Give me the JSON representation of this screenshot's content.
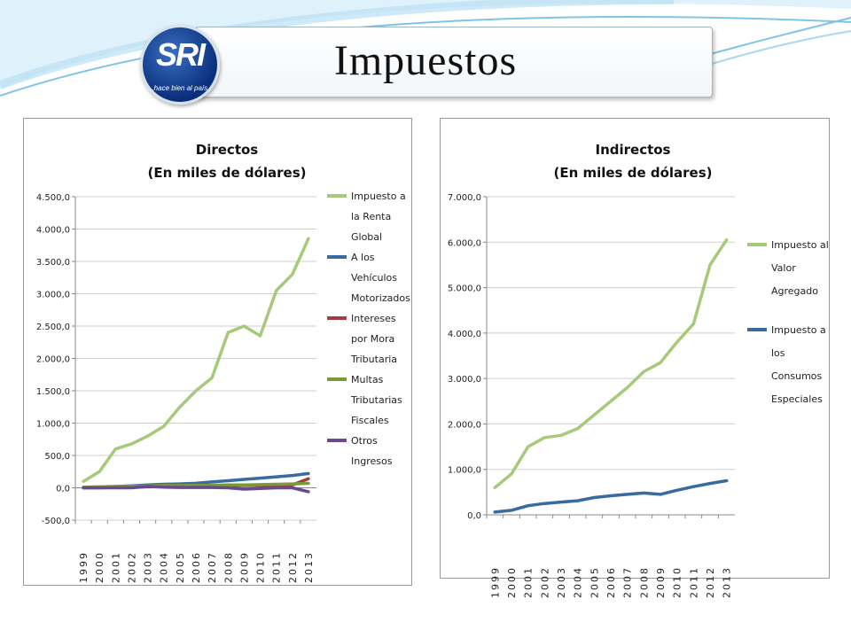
{
  "slide": {
    "title": "Impuestos",
    "logo_text": "SRI",
    "logo_slogan": "...hace bien al país"
  },
  "colors": {
    "accent_swoosh": "#bfe3f5",
    "series_green": "#a6c97a",
    "series_blue": "#386ba0",
    "series_red": "#a33c3a",
    "series_olive": "#789a3a",
    "series_purple": "#6a4a8c"
  },
  "chart_data": [
    {
      "type": "line",
      "title": "Directos",
      "subtitle": "(En miles de dólares)",
      "x": [
        "1999",
        "2000",
        "2001",
        "2002",
        "2003",
        "2004",
        "2005",
        "2006",
        "2007",
        "2008",
        "2009",
        "2010",
        "2011",
        "2012",
        "2013"
      ],
      "ylim": [
        -500,
        4500
      ],
      "yticks": [
        "-500,0",
        "0,0",
        "500,0",
        "1.000,0",
        "1.500,0",
        "2.000,0",
        "2.500,0",
        "3.000,0",
        "3.500,0",
        "4.000,0",
        "4.500,0"
      ],
      "grid": true,
      "legend_position": "right",
      "series": [
        {
          "name": "Impuesto a la Renta Global",
          "legend_lines": [
            "Impuesto a",
            "la Renta",
            "Global"
          ],
          "color": "#a6c97a",
          "values": [
            100,
            250,
            600,
            680,
            800,
            950,
            1250,
            1500,
            1700,
            2400,
            2500,
            2350,
            3050,
            3300,
            3850
          ]
        },
        {
          "name": "A los Vehículos Motorizados",
          "legend_lines": [
            "A los",
            "Vehículos",
            "Motorizados"
          ],
          "color": "#386ba0",
          "values": [
            0,
            5,
            20,
            30,
            45,
            55,
            60,
            70,
            90,
            110,
            130,
            150,
            170,
            190,
            220
          ]
        },
        {
          "name": "Intereses por Mora Tributaria",
          "legend_lines": [
            "Intereses",
            "por Mora",
            "Tributaria"
          ],
          "color": "#a33c3a",
          "values": [
            0,
            0,
            5,
            10,
            15,
            20,
            20,
            25,
            30,
            30,
            35,
            35,
            40,
            45,
            140
          ]
        },
        {
          "name": "Multas Tributarias Fiscales",
          "legend_lines": [
            "Multas",
            "Tributarias",
            "Fiscales"
          ],
          "color": "#789a3a",
          "values": [
            10,
            15,
            20,
            25,
            30,
            35,
            35,
            40,
            40,
            45,
            45,
            50,
            55,
            60,
            70
          ]
        },
        {
          "name": "Otros Ingresos",
          "legend_lines": [
            "Otros",
            "Ingresos"
          ],
          "color": "#6a4a8c",
          "values": [
            0,
            0,
            0,
            0,
            20,
            10,
            5,
            5,
            5,
            0,
            -20,
            -10,
            0,
            0,
            -60
          ]
        }
      ]
    },
    {
      "type": "line",
      "title": "Indirectos",
      "subtitle": "(En miles de dólares)",
      "x": [
        "1999",
        "2000",
        "2001",
        "2002",
        "2003",
        "2004",
        "2005",
        "2006",
        "2007",
        "2008",
        "2009",
        "2010",
        "2011",
        "2012",
        "2013"
      ],
      "ylim": [
        0,
        7000
      ],
      "yticks": [
        "0,0",
        "1.000,0",
        "2.000,0",
        "3.000,0",
        "4.000,0",
        "5.000,0",
        "6.000,0",
        "7.000,0"
      ],
      "grid": true,
      "legend_position": "right",
      "series": [
        {
          "name": "Impuesto al Valor Agregado",
          "legend_lines": [
            "Impuesto al",
            "Valor",
            "Agregado"
          ],
          "color": "#a6c97a",
          "values": [
            600,
            900,
            1500,
            1700,
            1750,
            1900,
            2200,
            2500,
            2800,
            3150,
            3350,
            3800,
            4200,
            5500,
            6050
          ]
        },
        {
          "name": "Impuesto a los Consumos Especiales",
          "legend_lines": [
            "Impuesto a",
            "los",
            "Consumos",
            "Especiales"
          ],
          "color": "#386ba0",
          "values": [
            60,
            100,
            200,
            250,
            280,
            310,
            380,
            420,
            450,
            480,
            450,
            540,
            620,
            690,
            750
          ]
        }
      ]
    }
  ]
}
